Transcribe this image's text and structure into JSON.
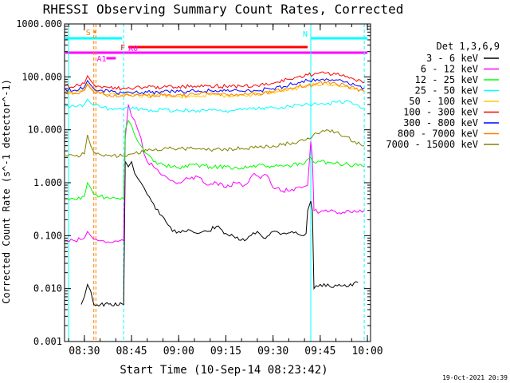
{
  "chart_data": {
    "type": "line",
    "title": "RHESSI Observing Summary Count Rates, Corrected",
    "xlabel": "Start Time (10-Sep-14 08:23:42)",
    "ylabel": "Corrected Count Rate (s^-1 detector^-1)",
    "y_scale": "log",
    "ylim": [
      0.001,
      1000
    ],
    "xlim": [
      "08:23:42",
      "10:01:00"
    ],
    "y_ticks": [
      "1000.000",
      "100.000",
      "10.000",
      "1.000",
      "0.100",
      "0.010",
      "0.001"
    ],
    "x_ticks": [
      "08:30",
      "08:45",
      "09:00",
      "09:15",
      "09:30",
      "09:45",
      "10:00"
    ],
    "legend_title": "Det 1,3,6,9",
    "legend_position": "right",
    "timestamp": "19-Oct-2021 20:39",
    "series": [
      {
        "name": "3 - 6 keV",
        "color": "#000000",
        "x": [
          "08:29:00",
          "08:30:00",
          "08:31:00",
          "08:32:00",
          "08:33:00",
          "08:42:30",
          "08:43:00",
          "08:44:00",
          "08:45:00",
          "08:46:00",
          "08:47:00",
          "08:48:00",
          "08:49:00",
          "08:50:00",
          "08:52:00",
          "08:54:00",
          "08:56:00",
          "08:58:00",
          "09:00:00",
          "09:03:00",
          "09:06:00",
          "09:09:00",
          "09:12:00",
          "09:15:00",
          "09:18:00",
          "09:21:00",
          "09:23:00",
          "09:25:00",
          "09:27:00",
          "09:30:00",
          "09:33:00",
          "09:36:00",
          "09:39:00",
          "09:40:30",
          "09:41:00",
          "09:42:00",
          "09:42:30",
          "09:43:00",
          "09:45:00",
          "09:48:00",
          "09:51:00",
          "09:54:00",
          "09:57:00"
        ],
        "y": [
          0.005,
          0.007,
          0.012,
          0.009,
          0.005,
          0.005,
          2.5,
          2.0,
          2.5,
          1.5,
          1.2,
          1.0,
          0.8,
          0.6,
          0.4,
          0.25,
          0.18,
          0.12,
          0.12,
          0.13,
          0.11,
          0.12,
          0.15,
          0.11,
          0.09,
          0.08,
          0.1,
          0.12,
          0.09,
          0.12,
          0.11,
          0.12,
          0.1,
          0.11,
          0.3,
          0.45,
          0.3,
          0.01,
          0.012,
          0.011,
          0.012,
          0.011,
          0.013
        ]
      },
      {
        "name": "6 - 12 keV",
        "color": "#ff00ff",
        "x": [
          "08:24:00",
          "08:27:00",
          "08:30:00",
          "08:31:00",
          "08:32:00",
          "08:33:00",
          "08:35:00",
          "08:38:00",
          "08:42:30",
          "08:43:00",
          "08:44:00",
          "08:45:00",
          "08:46:00",
          "08:47:00",
          "08:48:00",
          "08:49:00",
          "08:50:00",
          "08:52:00",
          "08:54:00",
          "08:56:00",
          "08:58:00",
          "09:00:00",
          "09:03:00",
          "09:06:00",
          "09:09:00",
          "09:12:00",
          "09:15:00",
          "09:18:00",
          "09:21:00",
          "09:24:00",
          "09:26:00",
          "09:28:00",
          "09:30:00",
          "09:33:00",
          "09:36:00",
          "09:39:00",
          "09:41:00",
          "09:42:00",
          "09:42:30",
          "09:43:00",
          "09:45:00",
          "09:48:00",
          "09:51:00",
          "09:54:00",
          "09:57:00",
          "09:59:00"
        ],
        "y": [
          0.08,
          0.08,
          0.09,
          0.12,
          0.1,
          0.085,
          0.08,
          0.075,
          0.08,
          7.0,
          30.0,
          18.0,
          15.0,
          10.0,
          7.0,
          3.5,
          2.5,
          2.0,
          1.5,
          1.3,
          1.1,
          1.0,
          1.2,
          1.3,
          0.9,
          1.0,
          0.8,
          1.0,
          0.9,
          1.5,
          1.2,
          1.4,
          0.8,
          0.7,
          0.75,
          0.8,
          0.9,
          6.0,
          3.0,
          0.3,
          0.28,
          0.29,
          0.27,
          0.3,
          0.28,
          0.3
        ]
      },
      {
        "name": "12 - 25 keV",
        "color": "#00ff00",
        "x": [
          "08:24:00",
          "08:27:00",
          "08:30:00",
          "08:31:00",
          "08:32:00",
          "08:33:00",
          "08:35:00",
          "08:38:00",
          "08:42:30",
          "08:43:00",
          "08:44:00",
          "08:45:00",
          "08:46:00",
          "08:47:00",
          "08:48:00",
          "08:50:00",
          "08:52:00",
          "08:55:00",
          "08:58:00",
          "09:00:00",
          "09:05:00",
          "09:10:00",
          "09:15:00",
          "09:20:00",
          "09:25:00",
          "09:30:00",
          "09:35:00",
          "09:40:00",
          "09:42:00",
          "09:43:00",
          "09:45:00",
          "09:48:00",
          "09:51:00",
          "09:54:00",
          "09:57:00",
          "09:59:00"
        ],
        "y": [
          0.5,
          0.48,
          0.55,
          1.0,
          0.8,
          0.6,
          0.55,
          0.5,
          0.5,
          10.0,
          15.0,
          12.0,
          8.0,
          6.0,
          5.0,
          3.5,
          2.5,
          2.2,
          2.0,
          1.9,
          2.2,
          2.0,
          2.0,
          1.9,
          2.1,
          2.0,
          2.1,
          2.3,
          3.0,
          2.4,
          2.5,
          2.4,
          2.3,
          2.2,
          2.1,
          2.0
        ]
      },
      {
        "name": "25 - 50 keV",
        "color": "#00ffff",
        "x": [
          "08:24:00",
          "08:27:00",
          "08:30:00",
          "08:31:00",
          "08:32:00",
          "08:33:00",
          "08:35:00",
          "08:38:00",
          "08:42:00",
          "08:44:00",
          "08:46:00",
          "08:50:00",
          "08:55:00",
          "09:00:00",
          "09:05:00",
          "09:10:00",
          "09:15:00",
          "09:20:00",
          "09:25:00",
          "09:30:00",
          "09:35:00",
          "09:38:00",
          "09:41:00",
          "09:44:00",
          "09:47:00",
          "09:50:00",
          "09:53:00",
          "09:56:00",
          "09:59:00"
        ],
        "y": [
          28.0,
          27.0,
          30.0,
          38.0,
          32.0,
          29.0,
          27.0,
          25.0,
          24.0,
          26.0,
          25.0,
          24.0,
          24.0,
          23.0,
          23.0,
          24.0,
          23.0,
          24.0,
          25.0,
          26.0,
          28.0,
          30.0,
          31.0,
          30.0,
          31.0,
          33.0,
          35.0,
          30.0,
          26.0
        ]
      },
      {
        "name": "50 - 100 keV",
        "color": "#ffc800",
        "x": [
          "08:24:00",
          "08:27:00",
          "08:30:00",
          "08:31:00",
          "08:32:00",
          "08:33:00",
          "08:35:00",
          "08:38:00",
          "08:42:00",
          "08:44:00",
          "08:46:00",
          "08:50:00",
          "08:55:00",
          "09:00:00",
          "09:05:00",
          "09:10:00",
          "09:15:00",
          "09:20:00",
          "09:25:00",
          "09:30:00",
          "09:35:00",
          "09:38:00",
          "09:41:00",
          "09:44:00",
          "09:47:00",
          "09:50:00",
          "09:53:00",
          "09:56:00",
          "09:59:00"
        ],
        "y": [
          52.0,
          50.0,
          58.0,
          75.0,
          62.0,
          55.0,
          50.0,
          47.0,
          45.0,
          47.0,
          45.0,
          44.0,
          44.0,
          43.0,
          44.0,
          45.0,
          44.0,
          45.0,
          47.0,
          52.0,
          58.0,
          62.0,
          68.0,
          72.0,
          75.0,
          72.0,
          65.0,
          58.0,
          52.0
        ]
      },
      {
        "name": "100 - 300 keV",
        "color": "#ff0000",
        "x": [
          "08:24:00",
          "08:27:00",
          "08:30:00",
          "08:31:00",
          "08:32:00",
          "08:33:00",
          "08:35:00",
          "08:38:00",
          "08:42:00",
          "08:44:00",
          "08:46:00",
          "08:50:00",
          "08:55:00",
          "09:00:00",
          "09:05:00",
          "09:10:00",
          "09:15:00",
          "09:20:00",
          "09:25:00",
          "09:30:00",
          "09:35:00",
          "09:38:00",
          "09:41:00",
          "09:44:00",
          "09:47:00",
          "09:50:00",
          "09:53:00",
          "09:56:00",
          "09:59:00"
        ],
        "y": [
          68.0,
          66.0,
          75.0,
          105.0,
          85.0,
          72.0,
          66.0,
          62.0,
          60.0,
          63.0,
          62.0,
          63.0,
          64.0,
          66.0,
          67.0,
          68.0,
          66.0,
          66.0,
          68.0,
          75.0,
          90.0,
          100.0,
          108.0,
          115.0,
          118.0,
          112.0,
          100.0,
          88.0,
          78.0
        ]
      },
      {
        "name": "300 - 800 keV",
        "color": "#0000ff",
        "x": [
          "08:24:00",
          "08:27:00",
          "08:30:00",
          "08:31:00",
          "08:32:00",
          "08:33:00",
          "08:35:00",
          "08:38:00",
          "08:42:00",
          "08:44:00",
          "08:46:00",
          "08:50:00",
          "08:55:00",
          "09:00:00",
          "09:05:00",
          "09:10:00",
          "09:15:00",
          "09:20:00",
          "09:25:00",
          "09:30:00",
          "09:35:00",
          "09:38:00",
          "09:41:00",
          "09:44:00",
          "09:47:00",
          "09:50:00",
          "09:53:00",
          "09:56:00",
          "09:59:00"
        ],
        "y": [
          58.0,
          56.0,
          64.0,
          85.0,
          70.0,
          60.0,
          56.0,
          52.0,
          50.0,
          52.0,
          51.0,
          51.0,
          52.0,
          53.0,
          54.0,
          55.0,
          54.0,
          54.0,
          55.0,
          60.0,
          70.0,
          78.0,
          85.0,
          90.0,
          92.0,
          88.0,
          80.0,
          70.0,
          62.0
        ]
      },
      {
        "name": "800 - 7000 keV",
        "color": "#ff8000",
        "x": [
          "08:24:00",
          "08:27:00",
          "08:30:00",
          "08:31:00",
          "08:32:00",
          "08:33:00",
          "08:35:00",
          "08:38:00",
          "08:42:00",
          "08:44:00",
          "08:46:00",
          "08:50:00",
          "08:55:00",
          "09:00:00",
          "09:05:00",
          "09:10:00",
          "09:15:00",
          "09:20:00",
          "09:25:00",
          "09:30:00",
          "09:35:00",
          "09:38:00",
          "09:41:00",
          "09:44:00",
          "09:47:00",
          "09:50:00",
          "09:53:00",
          "09:56:00",
          "09:59:00"
        ],
        "y": [
          50.0,
          48.0,
          55.0,
          72.0,
          60.0,
          52.0,
          48.0,
          45.0,
          44.0,
          45.0,
          44.0,
          44.0,
          45.0,
          46.0,
          47.0,
          48.0,
          47.0,
          47.0,
          48.0,
          52.0,
          60.0,
          65.0,
          70.0,
          75.0,
          78.0,
          75.0,
          68.0,
          60.0,
          54.0
        ]
      },
      {
        "name": "7000 - 15000 keV",
        "color": "#808000",
        "x": [
          "08:24:00",
          "08:27:00",
          "08:30:00",
          "08:31:00",
          "08:32:00",
          "08:33:00",
          "08:35:00",
          "08:38:00",
          "08:42:00",
          "08:44:00",
          "08:46:00",
          "08:50:00",
          "08:55:00",
          "09:00:00",
          "09:05:00",
          "09:10:00",
          "09:15:00",
          "09:20:00",
          "09:25:00",
          "09:30:00",
          "09:35:00",
          "09:38:00",
          "09:41:00",
          "09:44:00",
          "09:47:00",
          "09:50:00",
          "09:53:00",
          "09:56:00",
          "09:59:00"
        ],
        "y": [
          3.3,
          3.2,
          3.5,
          8.0,
          5.0,
          3.8,
          3.4,
          3.3,
          3.2,
          3.4,
          3.6,
          4.0,
          4.3,
          4.5,
          4.4,
          4.2,
          4.3,
          4.5,
          4.6,
          5.0,
          5.5,
          6.0,
          7.0,
          8.5,
          10.0,
          9.0,
          7.5,
          6.0,
          5.0
        ]
      }
    ],
    "vlines": [
      {
        "x": "08:25:00",
        "color": "#00ffff",
        "style": "solid"
      },
      {
        "x": "08:33:00",
        "color": "#ff8000",
        "style": "dashed"
      },
      {
        "x": "08:33:40",
        "color": "#ff8000",
        "style": "dashed"
      },
      {
        "x": "08:42:30",
        "color": "#00ffff",
        "style": "dashed"
      },
      {
        "x": "09:42:00",
        "color": "#00ffff",
        "style": "solid"
      },
      {
        "x": "09:59:00",
        "color": "#00ffff",
        "style": "dashed"
      }
    ],
    "flag_bars": [
      {
        "label": "S",
        "color": "#ff8000",
        "x0": "08:33:00",
        "x1": "08:33:40"
      },
      {
        "label": "",
        "color": "#00ffff",
        "x0": "08:24:00",
        "x1": "08:42:00"
      },
      {
        "label": "N",
        "color": "#00ffff",
        "x0": "09:42:00",
        "x1": "10:00:00"
      },
      {
        "label": "F",
        "color": "#ff0000",
        "x0": "08:44:00",
        "x1": "09:41:00"
      },
      {
        "label": "A0",
        "color": "#ff00ff",
        "x0": "08:24:00",
        "x1": "10:00:00"
      },
      {
        "label": "A1",
        "color": "#ff00ff",
        "x0": "08:37:00",
        "x1": "08:40:00"
      }
    ]
  }
}
